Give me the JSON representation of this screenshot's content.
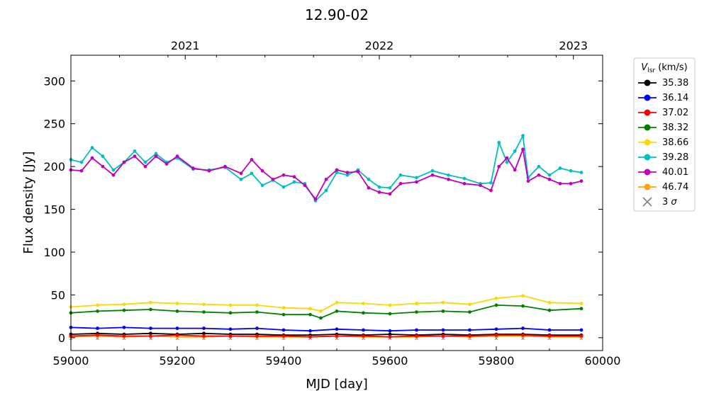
{
  "chart_data": {
    "type": "line",
    "title": "12.90-02",
    "xlabel": "MJD [day]",
    "ylabel": "Flux density [Jy]",
    "xlim": [
      59000,
      60000
    ],
    "ylim": [
      -15,
      330
    ],
    "xticks": [
      59000,
      59200,
      59400,
      59600,
      59800,
      60000
    ],
    "yticks": [
      0,
      50,
      100,
      150,
      200,
      250,
      300
    ],
    "top_axis": {
      "ticks": [
        {
          "label": "2021",
          "mjd": 59215
        },
        {
          "label": "2022",
          "mjd": 59580
        },
        {
          "label": "2023",
          "mjd": 59945
        }
      ]
    },
    "legend": {
      "title": "V_lsr (km/s)",
      "title_main": "V",
      "title_sub": "lsr",
      "title_unit": "(km/s)",
      "placement": "outside-top-right"
    },
    "grid": false,
    "series": [
      {
        "name": "35.38",
        "color": "#000000",
        "x": [
          59000,
          59050,
          59100,
          59150,
          59200,
          59250,
          59300,
          59350,
          59400,
          59450,
          59500,
          59550,
          59600,
          59650,
          59700,
          59750,
          59800,
          59850,
          59900,
          59960
        ],
        "y": [
          4,
          5,
          4,
          5,
          4,
          5,
          4,
          4,
          3,
          3,
          4,
          3,
          4,
          3,
          4,
          3,
          4,
          4,
          3,
          3
        ]
      },
      {
        "name": "36.14",
        "color": "#0000ff",
        "x": [
          59000,
          59050,
          59100,
          59150,
          59200,
          59250,
          59300,
          59350,
          59400,
          59450,
          59500,
          59550,
          59600,
          59650,
          59700,
          59750,
          59800,
          59850,
          59900,
          59960
        ],
        "y": [
          12,
          11,
          12,
          11,
          11,
          11,
          10,
          11,
          9,
          8,
          10,
          9,
          8,
          9,
          9,
          9,
          10,
          11,
          9,
          9
        ]
      },
      {
        "name": "37.02",
        "color": "#ff0000",
        "x": [
          59000,
          59050,
          59100,
          59150,
          59200,
          59250,
          59300,
          59350,
          59400,
          59450,
          59500,
          59550,
          59600,
          59650,
          59700,
          59750,
          59800,
          59850,
          59900,
          59960
        ],
        "y": [
          2,
          3,
          2,
          2,
          3,
          2,
          2,
          2,
          2,
          1,
          2,
          2,
          1,
          2,
          2,
          2,
          3,
          3,
          2,
          2
        ]
      },
      {
        "name": "38.32",
        "color": "#008000",
        "x": [
          59000,
          59050,
          59100,
          59150,
          59200,
          59250,
          59300,
          59350,
          59400,
          59450,
          59470,
          59500,
          59550,
          59600,
          59650,
          59700,
          59750,
          59800,
          59850,
          59900,
          59960
        ],
        "y": [
          29,
          31,
          32,
          33,
          31,
          30,
          29,
          30,
          27,
          27,
          23,
          31,
          29,
          28,
          30,
          31,
          30,
          38,
          37,
          32,
          34
        ]
      },
      {
        "name": "38.66",
        "color": "#ffd700",
        "x": [
          59000,
          59050,
          59100,
          59150,
          59200,
          59250,
          59300,
          59350,
          59400,
          59450,
          59470,
          59500,
          59550,
          59600,
          59650,
          59700,
          59750,
          59800,
          59850,
          59900,
          59960
        ],
        "y": [
          36,
          38,
          39,
          41,
          40,
          39,
          38,
          38,
          35,
          34,
          31,
          41,
          40,
          38,
          40,
          41,
          39,
          46,
          49,
          41,
          40
        ]
      },
      {
        "name": "39.28",
        "color": "#00bfbf",
        "x": [
          59000,
          59020,
          59040,
          59060,
          59080,
          59100,
          59120,
          59140,
          59160,
          59180,
          59200,
          59230,
          59260,
          59290,
          59320,
          59340,
          59360,
          59380,
          59400,
          59420,
          59440,
          59460,
          59480,
          59500,
          59520,
          59540,
          59560,
          59580,
          59600,
          59620,
          59650,
          59680,
          59710,
          59740,
          59770,
          59790,
          59805,
          59820,
          59835,
          59850,
          59860,
          59880,
          59900,
          59920,
          59940,
          59960
        ],
        "y": [
          208,
          205,
          222,
          212,
          196,
          205,
          218,
          205,
          215,
          205,
          210,
          197,
          196,
          199,
          185,
          192,
          178,
          184,
          176,
          182,
          180,
          160,
          172,
          193,
          190,
          196,
          185,
          176,
          175,
          190,
          187,
          195,
          190,
          186,
          180,
          181,
          228,
          205,
          218,
          236,
          187,
          200,
          190,
          198,
          195,
          193
        ]
      },
      {
        "name": "40.01",
        "color": "#bf00bf",
        "x": [
          59000,
          59020,
          59040,
          59060,
          59080,
          59100,
          59120,
          59140,
          59160,
          59180,
          59200,
          59230,
          59260,
          59290,
          59320,
          59340,
          59360,
          59380,
          59400,
          59420,
          59440,
          59460,
          59480,
          59500,
          59520,
          59540,
          59560,
          59580,
          59600,
          59620,
          59650,
          59680,
          59710,
          59740,
          59770,
          59790,
          59805,
          59820,
          59835,
          59850,
          59860,
          59880,
          59900,
          59920,
          59940,
          59960
        ],
        "y": [
          196,
          195,
          210,
          200,
          190,
          205,
          212,
          200,
          212,
          203,
          212,
          198,
          195,
          200,
          192,
          208,
          195,
          185,
          190,
          188,
          178,
          162,
          185,
          196,
          193,
          194,
          175,
          170,
          168,
          180,
          182,
          190,
          185,
          180,
          178,
          172,
          200,
          210,
          196,
          220,
          183,
          190,
          185,
          180,
          180,
          183
        ]
      },
      {
        "name": "46.74",
        "color": "#ffa500",
        "x": [
          59000,
          59050,
          59100,
          59150,
          59200,
          59250,
          59300,
          59350,
          59400,
          59450,
          59500,
          59550,
          59600,
          59650,
          59700,
          59750,
          59800,
          59850,
          59900,
          59960
        ],
        "y": [
          1,
          2,
          1,
          2,
          1,
          1,
          2,
          1,
          1,
          1,
          2,
          1,
          1,
          1,
          2,
          1,
          2,
          2,
          1,
          1
        ]
      },
      {
        "name": "3 σ",
        "color": "#808080",
        "marker": "x",
        "x": [
          59000,
          59050,
          59100,
          59150,
          59200,
          59250,
          59300,
          59350,
          59400,
          59450,
          59500,
          59550,
          59600,
          59650,
          59700,
          59750,
          59800,
          59850,
          59900,
          59960
        ],
        "y": [
          -1,
          -1,
          -1,
          -1,
          -1,
          -1,
          -1,
          -1,
          -1,
          -1,
          -1,
          -1,
          -1,
          -1,
          -1,
          -1,
          -1,
          -1,
          -1,
          -1
        ]
      }
    ]
  }
}
